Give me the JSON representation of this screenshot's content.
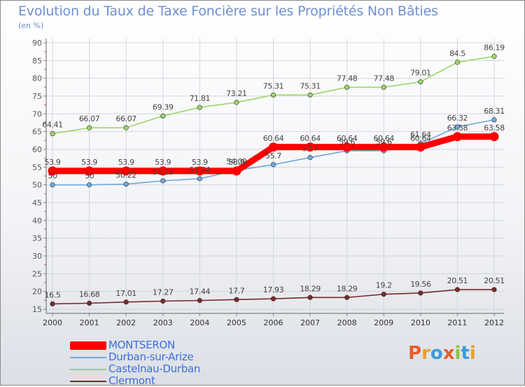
{
  "title": "Evolution du Taux de Taxe Foncière sur les Propriétés Non Bâties",
  "unit_label": "(en %)",
  "logo": {
    "letters": [
      "P",
      "r",
      "o",
      "x",
      "i",
      "t",
      "i"
    ],
    "colors": [
      "#e85d2a",
      "#e8a02a",
      "#3b9bd8",
      "#e85d2a",
      "#8cc63f",
      "#3b9bd8",
      "#e8a02a"
    ]
  },
  "chart_data": {
    "type": "line",
    "title": "Evolution du Taux de Taxe Foncière sur les Propriétés Non Bâties",
    "ylabel": "(en %)",
    "categories": [
      "2000",
      "2001",
      "2002",
      "2003",
      "2004",
      "2005",
      "2006",
      "2007",
      "2008",
      "2009",
      "2010",
      "2011",
      "2012"
    ],
    "ylim": [
      15,
      90
    ],
    "yticks": [
      15,
      20,
      25,
      30,
      35,
      40,
      45,
      50,
      55,
      60,
      65,
      70,
      75,
      80,
      85,
      90
    ],
    "grid": true,
    "legend_position": "bottom-left",
    "series": [
      {
        "name": "MONTSERON",
        "color": "#ff0000",
        "values": [
          53.9,
          53.9,
          53.9,
          53.9,
          53.9,
          53.9,
          60.64,
          60.64,
          60.64,
          60.64,
          60.64,
          63.58,
          63.58
        ],
        "labels": [
          "53.9",
          "53.9",
          "53.9",
          "53.9",
          "53.9",
          "53.9",
          "60.64",
          "60.64",
          "60.64",
          "60.64",
          "60.64",
          "63.58",
          "63.58"
        ]
      },
      {
        "name": "Durban-sur-Arize",
        "color": "#6fa8dc",
        "values": [
          50,
          50,
          50.22,
          51.13,
          51.74,
          54.09,
          55.7,
          57.7,
          59.6,
          59.6,
          61.64,
          66.32,
          68.31
        ],
        "labels": [
          "50",
          "50",
          "50.22",
          "51.13",
          "51.74",
          "54.09",
          "55.7",
          "57.7",
          "59.6",
          "59.6",
          "61.64",
          "66.32",
          "68.31"
        ]
      },
      {
        "name": "Castelnau-Durban",
        "color": "#9bd56a",
        "values": [
          64.41,
          66.07,
          66.07,
          69.39,
          71.81,
          73.21,
          75.31,
          75.31,
          77.48,
          77.48,
          79.01,
          84.5,
          86.19
        ],
        "labels": [
          "64.41",
          "66.07",
          "66.07",
          "69.39",
          "71.81",
          "73.21",
          "75.31",
          "75.31",
          "77.48",
          "77.48",
          "79.01",
          "84.5",
          "86.19"
        ]
      },
      {
        "name": "Clermont",
        "color": "#7a2a2a",
        "values": [
          16.5,
          16.68,
          17.01,
          17.27,
          17.44,
          17.7,
          17.93,
          18.29,
          18.29,
          19.2,
          19.56,
          20.51,
          20.51
        ],
        "labels": [
          "16.5",
          "16.68",
          "17.01",
          "17.27",
          "17.44",
          "17.7",
          "17.93",
          "18.29",
          "18.29",
          "19.2",
          "19.56",
          "20.51",
          "20.51"
        ]
      }
    ]
  }
}
